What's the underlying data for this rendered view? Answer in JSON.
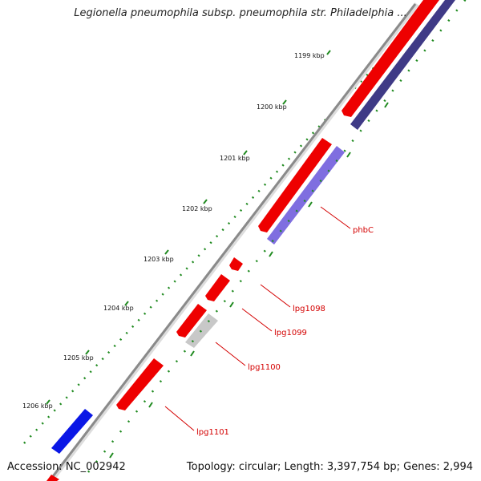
{
  "title": "Legionella pneumophila subsp. pneumophila str. Philadelphia ...",
  "accession": "Accession: NC_002942",
  "summary": "Topology: circular; Length: 3,397,754 bp; Genes: 2,994",
  "colors": {
    "backbone": "#8a8a8a",
    "forward_gene": "#ee0000",
    "reverse_gene_dark": "#3f3a86",
    "reverse_gene_light": "#7f6ee0",
    "unknown_gene": "#c8c8c8",
    "blue_gene": "#0a17e6",
    "tick_dot": "#1f8a1f",
    "label": "#d40000"
  },
  "kbp_ticks": [
    "1199 kbp",
    "1200 kbp",
    "1201 kbp",
    "1202 kbp",
    "1203 kbp",
    "1204 kbp",
    "1205 kbp",
    "1206 kbp"
  ],
  "gene_labels": [
    "phbC",
    "lpg1098",
    "lpg1099",
    "lpg1100",
    "lpg1101"
  ]
}
